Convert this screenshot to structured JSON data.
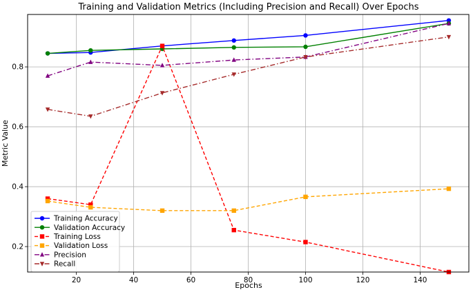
{
  "chart_data": {
    "type": "line",
    "title": "Training and Validation Metrics (Including Precision and Recall) Over Epochs",
    "xlabel": "Epochs",
    "ylabel": "Metric Value",
    "xlim": [
      3,
      157
    ],
    "ylim": [
      0.115,
      0.975
    ],
    "x": [
      10,
      25,
      50,
      75,
      100,
      150
    ],
    "xticks": [
      "20",
      "40",
      "60",
      "80",
      "100",
      "120",
      "140"
    ],
    "yticks": [
      "0.2",
      "0.4",
      "0.6",
      "0.8"
    ],
    "grid": true,
    "legend_position": "lower-left",
    "series": [
      {
        "name": "Training Accuracy",
        "color": "#0000ff",
        "line_style": "solid",
        "marker": "circle",
        "values": [
          0.845,
          0.848,
          0.87,
          0.888,
          0.905,
          0.955
        ]
      },
      {
        "name": "Validation Accuracy",
        "color": "#008000",
        "line_style": "solid",
        "marker": "circle",
        "values": [
          0.845,
          0.855,
          0.86,
          0.865,
          0.867,
          0.945
        ]
      },
      {
        "name": "Training Loss",
        "color": "#ff0000",
        "line_style": "dashed",
        "marker": "square",
        "values": [
          0.36,
          0.34,
          0.87,
          0.255,
          0.215,
          0.115
        ]
      },
      {
        "name": "Validation Loss",
        "color": "#ffa500",
        "line_style": "dashed",
        "marker": "square",
        "values": [
          0.352,
          0.331,
          0.32,
          0.32,
          0.366,
          0.393
        ]
      },
      {
        "name": "Precision",
        "color": "#800080",
        "line_style": "dashdot",
        "marker": "triangle-up",
        "values": [
          0.77,
          0.816,
          0.805,
          0.823,
          0.833,
          0.945
        ]
      },
      {
        "name": "Recall",
        "color": "#a52a2a",
        "line_style": "dashdot",
        "marker": "triangle-down",
        "values": [
          0.658,
          0.635,
          0.713,
          0.775,
          0.833,
          0.9
        ]
      }
    ]
  }
}
